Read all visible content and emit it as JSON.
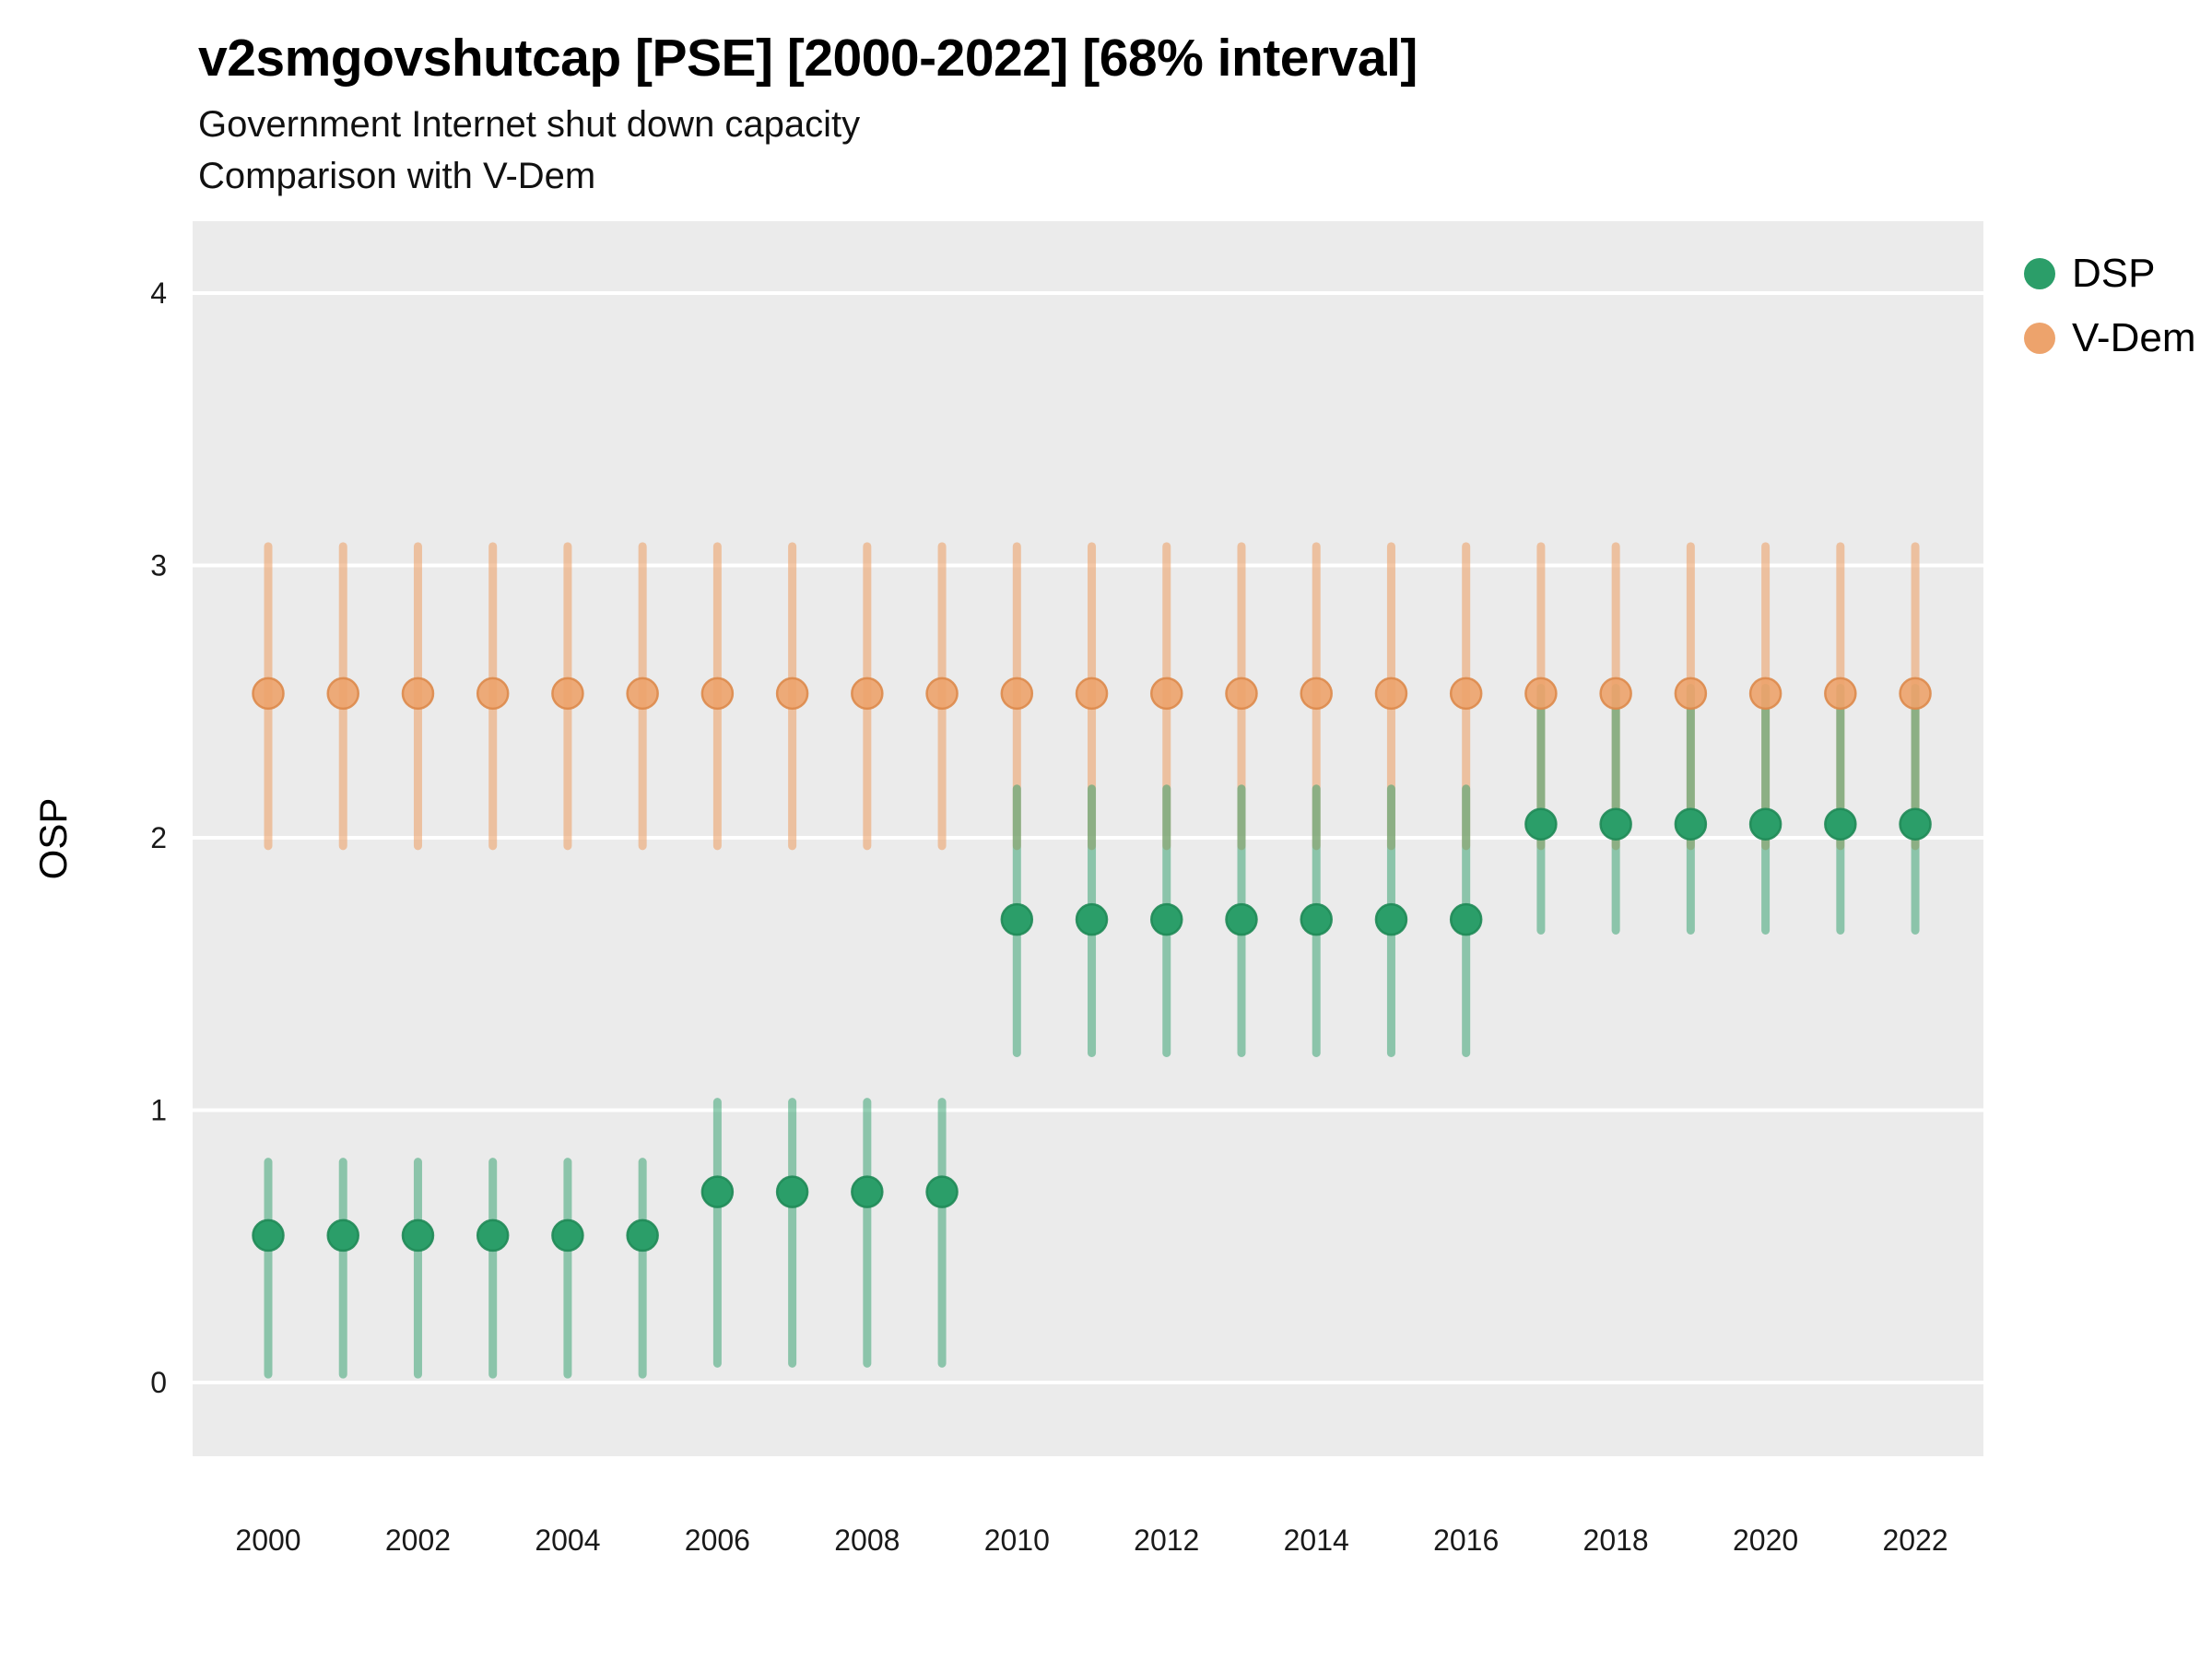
{
  "title": "v2smgovshutcap [PSE] [2000-2022] [68% interval]",
  "subtitle1": "Government Internet shut down capacity",
  "subtitle2": "Comparison with V-Dem",
  "y_axis_title": "OSP",
  "legend": {
    "items": [
      {
        "label": "DSP",
        "color": "#2B9E69"
      },
      {
        "label": "V-Dem",
        "color": "#EDA36C"
      }
    ]
  },
  "colors": {
    "panel_background": "#EBEBEB",
    "gridline": "#FFFFFF",
    "tick_label": "#1a1a1a"
  },
  "chart_data": {
    "type": "scatter",
    "subtype": "pointrange-68pct-interval",
    "xlabel": "",
    "ylabel": "OSP",
    "ylim": [
      -0.3,
      4.3
    ],
    "y_ticks": [
      0,
      1,
      2,
      3,
      4
    ],
    "x_tick_labels": [
      "2000",
      "2002",
      "2004",
      "2006",
      "2008",
      "2010",
      "2012",
      "2014",
      "2016",
      "2018",
      "2020",
      "2022"
    ],
    "legend_position": "right-top",
    "grid": "horizontal-major-only",
    "columns": [
      "year",
      "value",
      "low",
      "high"
    ],
    "series": [
      {
        "name": "DSP",
        "color": "#2B9E69",
        "point_stroke": "#1f8a57",
        "line_opacity": 0.5,
        "point_opacity": 1,
        "data": [
          [
            2000,
            0.54,
            0.03,
            0.81
          ],
          [
            2001,
            0.54,
            0.03,
            0.81
          ],
          [
            2002,
            0.54,
            0.03,
            0.81
          ],
          [
            2003,
            0.54,
            0.03,
            0.81
          ],
          [
            2004,
            0.54,
            0.03,
            0.81
          ],
          [
            2005,
            0.54,
            0.03,
            0.81
          ],
          [
            2006,
            0.7,
            0.07,
            1.03
          ],
          [
            2007,
            0.7,
            0.07,
            1.03
          ],
          [
            2008,
            0.7,
            0.07,
            1.03
          ],
          [
            2009,
            0.7,
            0.07,
            1.03
          ],
          [
            2010,
            1.7,
            1.21,
            2.18
          ],
          [
            2011,
            1.7,
            1.21,
            2.18
          ],
          [
            2012,
            1.7,
            1.21,
            2.18
          ],
          [
            2013,
            1.7,
            1.21,
            2.18
          ],
          [
            2014,
            1.7,
            1.21,
            2.18
          ],
          [
            2015,
            1.7,
            1.21,
            2.18
          ],
          [
            2016,
            1.7,
            1.21,
            2.18
          ],
          [
            2017,
            2.05,
            1.66,
            2.55
          ],
          [
            2018,
            2.05,
            1.66,
            2.55
          ],
          [
            2019,
            2.05,
            1.66,
            2.55
          ],
          [
            2020,
            2.05,
            1.66,
            2.55
          ],
          [
            2021,
            2.05,
            1.66,
            2.55
          ],
          [
            2022,
            2.05,
            1.66,
            2.55
          ]
        ]
      },
      {
        "name": "V-Dem",
        "color": "#EDA36C",
        "point_stroke": "#DD8A4B",
        "line_opacity": 0.6,
        "point_opacity": 0.9,
        "data": [
          [
            2000,
            2.53,
            1.97,
            3.07
          ],
          [
            2001,
            2.53,
            1.97,
            3.07
          ],
          [
            2002,
            2.53,
            1.97,
            3.07
          ],
          [
            2003,
            2.53,
            1.97,
            3.07
          ],
          [
            2004,
            2.53,
            1.97,
            3.07
          ],
          [
            2005,
            2.53,
            1.97,
            3.07
          ],
          [
            2006,
            2.53,
            1.97,
            3.07
          ],
          [
            2007,
            2.53,
            1.97,
            3.07
          ],
          [
            2008,
            2.53,
            1.97,
            3.07
          ],
          [
            2009,
            2.53,
            1.97,
            3.07
          ],
          [
            2010,
            2.53,
            1.97,
            3.07
          ],
          [
            2011,
            2.53,
            1.97,
            3.07
          ],
          [
            2012,
            2.53,
            1.97,
            3.07
          ],
          [
            2013,
            2.53,
            1.97,
            3.07
          ],
          [
            2014,
            2.53,
            1.97,
            3.07
          ],
          [
            2015,
            2.53,
            1.97,
            3.07
          ],
          [
            2016,
            2.53,
            1.97,
            3.07
          ],
          [
            2017,
            2.53,
            1.97,
            3.07
          ],
          [
            2018,
            2.53,
            1.97,
            3.07
          ],
          [
            2019,
            2.53,
            1.97,
            3.07
          ],
          [
            2020,
            2.53,
            1.97,
            3.07
          ],
          [
            2021,
            2.53,
            1.97,
            3.07
          ],
          [
            2022,
            2.53,
            1.97,
            3.07
          ]
        ]
      }
    ]
  }
}
